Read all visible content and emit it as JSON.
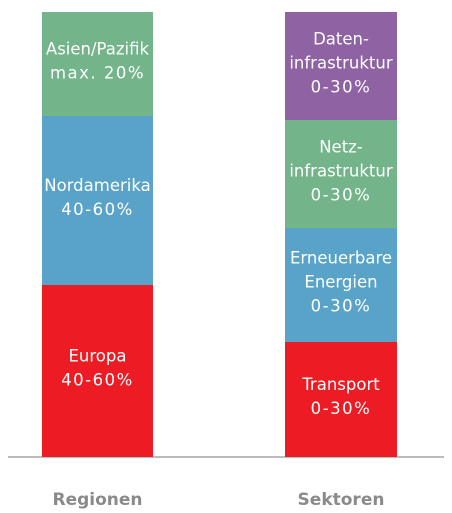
{
  "columns": [
    {
      "label": "Regionen",
      "blocks": [
        {
          "lines": [
            "Asien/Pazifik",
            "max. 20%"
          ]
        },
        {
          "lines": [
            "Nordamerika",
            "40-60%"
          ]
        },
        {
          "lines": [
            "Europa",
            "40-60%"
          ]
        }
      ]
    },
    {
      "label": "Sektoren",
      "blocks": [
        {
          "lines": [
            "Daten-",
            "infrastruktur",
            "0-30%"
          ]
        },
        {
          "lines": [
            "Netz-",
            "infrastruktur",
            "0-30%"
          ]
        },
        {
          "lines": [
            "Erneuerbare",
            "Energien",
            "0-30%"
          ]
        },
        {
          "lines": [
            "Transport",
            "0-30%"
          ]
        }
      ]
    }
  ]
}
